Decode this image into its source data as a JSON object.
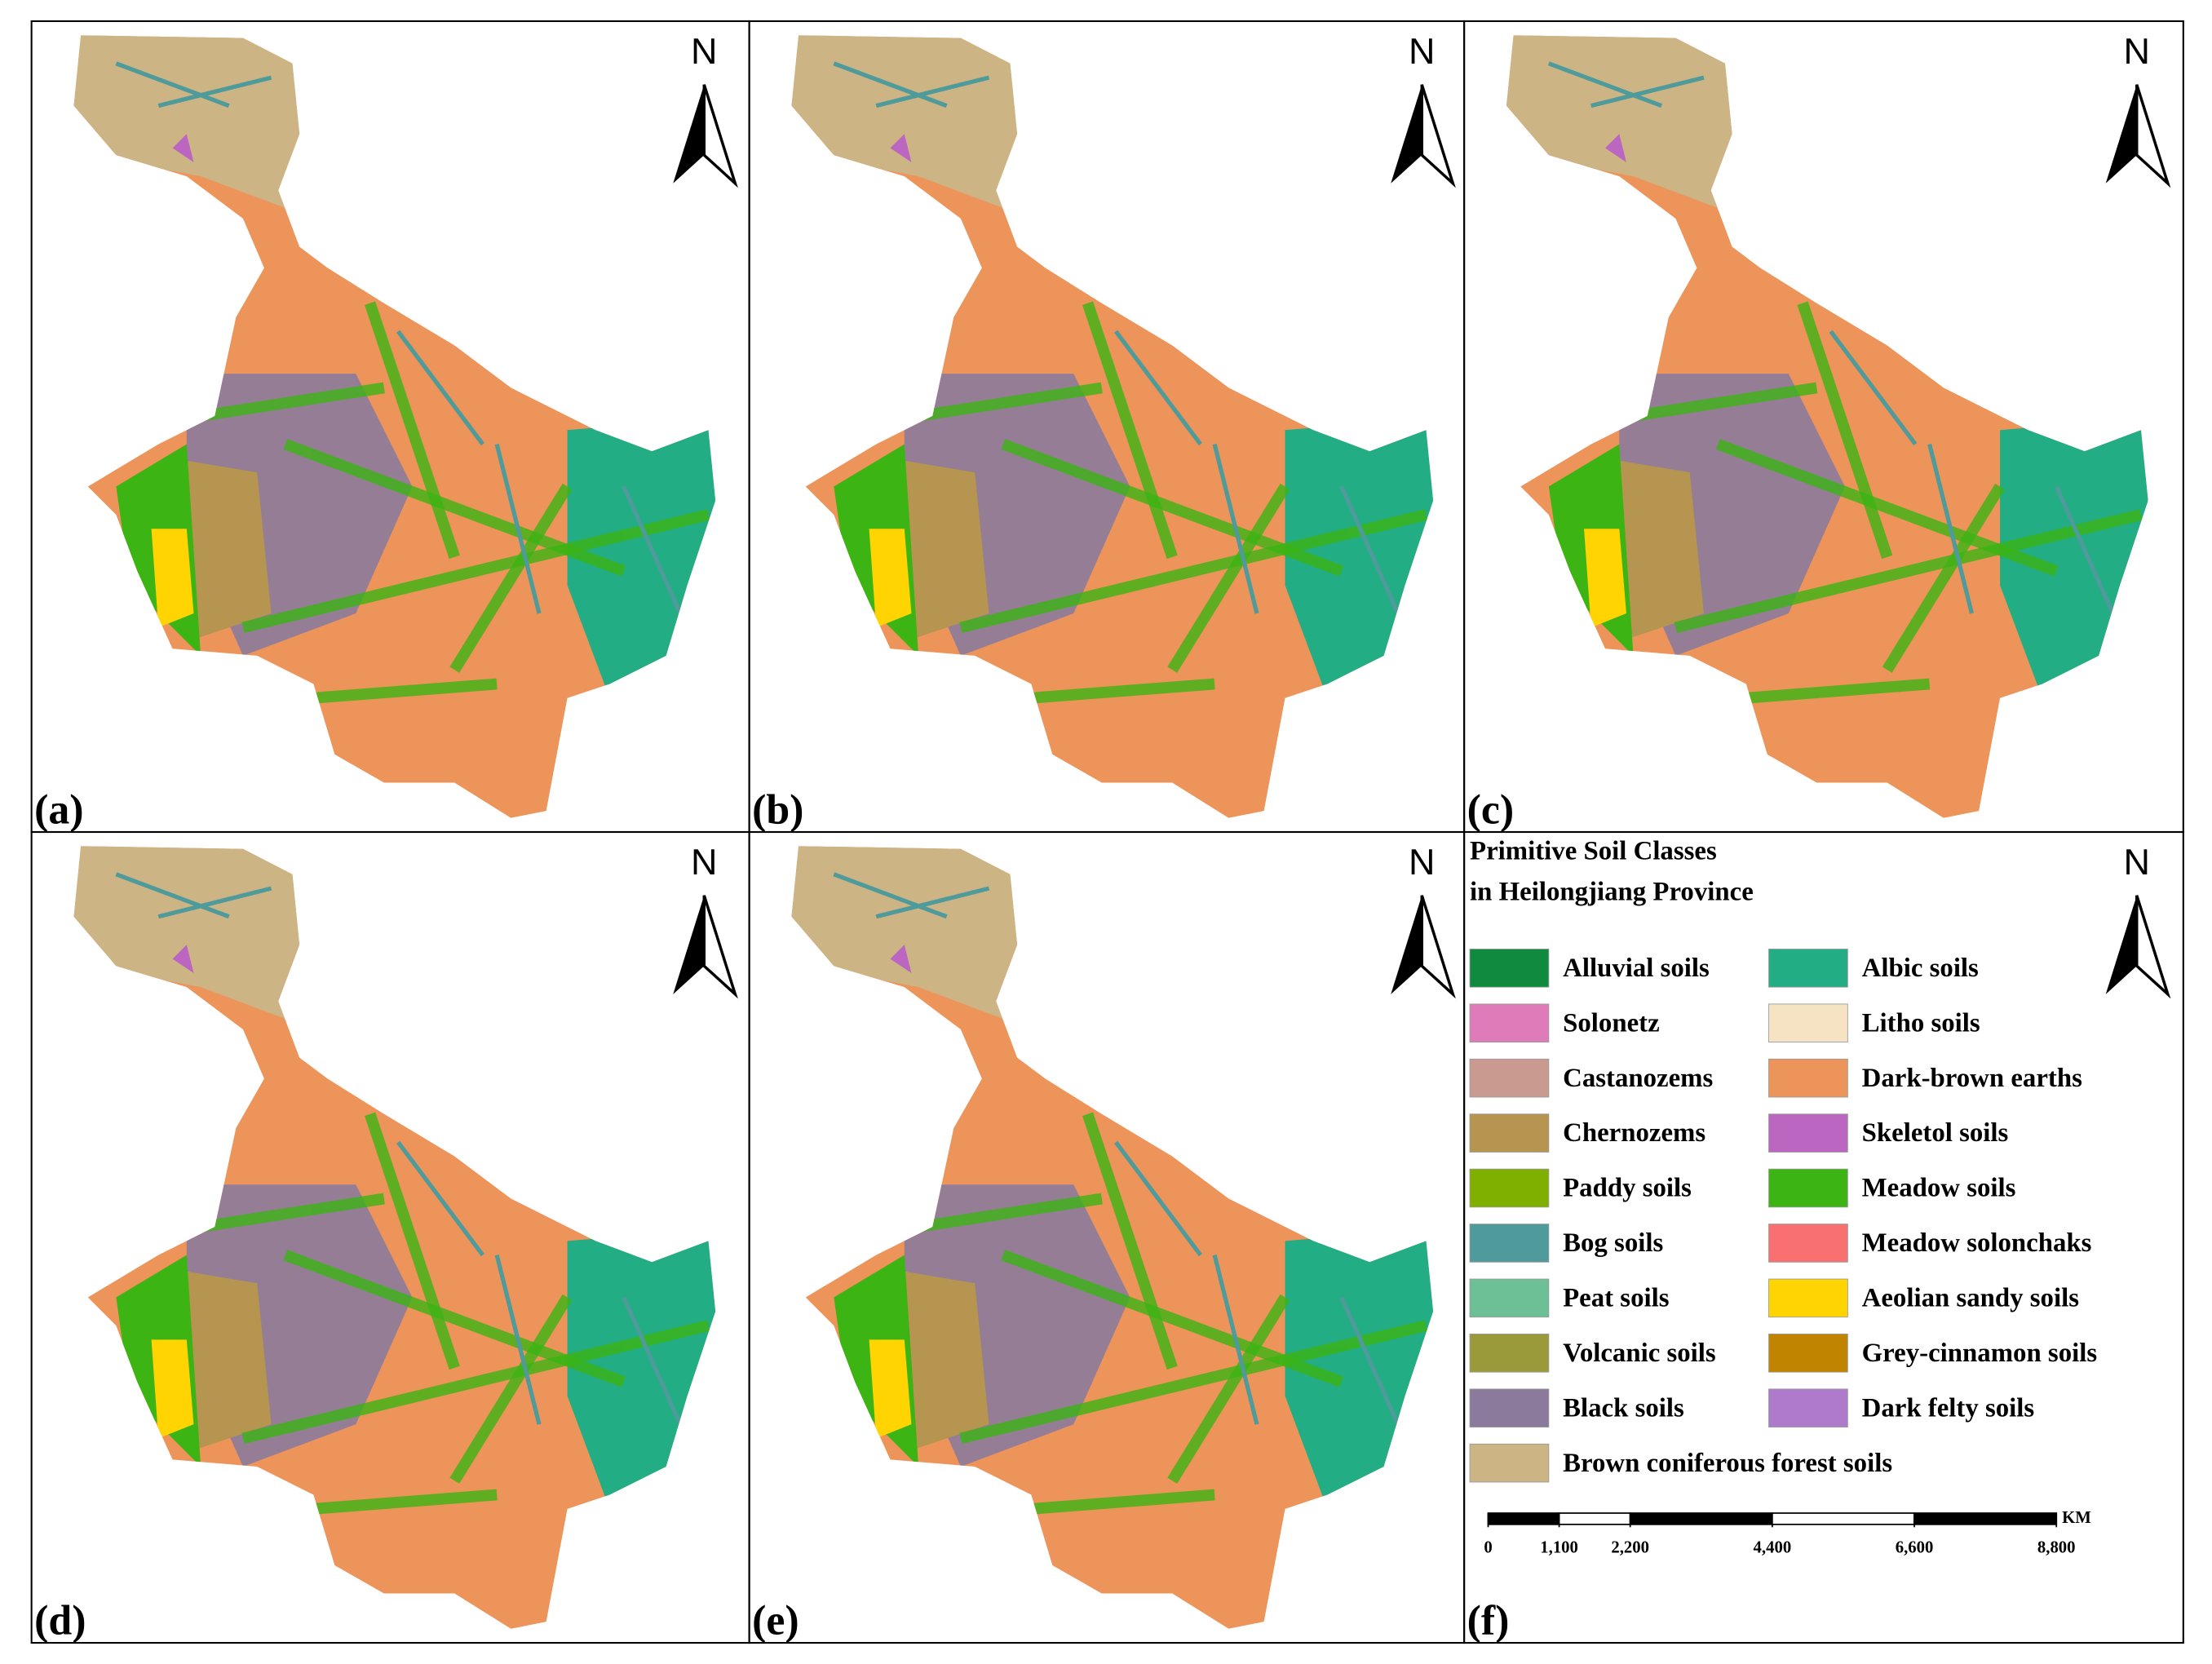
{
  "panels": [
    {
      "label": "(a)"
    },
    {
      "label": "(b)"
    },
    {
      "label": "(c)"
    },
    {
      "label": "(d)"
    },
    {
      "label": "(e)"
    },
    {
      "label": "(f)"
    }
  ],
  "north_label": "N",
  "legend": {
    "title_lines": [
      "Primitive Soil Classes",
      "in Heilongjiang Province"
    ],
    "items": [
      {
        "name": "Alluvial soils",
        "color": "#0f8a3f"
      },
      {
        "name": "Solonetz",
        "color": "#e07bb9"
      },
      {
        "name": "Castanozems",
        "color": "#c99a90"
      },
      {
        "name": "Chernozems",
        "color": "#b5954f"
      },
      {
        "name": "Paddy soils",
        "color": "#7fb000"
      },
      {
        "name": "Bog soils",
        "color": "#4f9a9a"
      },
      {
        "name": "Peat soils",
        "color": "#6dbf96"
      },
      {
        "name": "Volcanic soils",
        "color": "#9a9a3a"
      },
      {
        "name": "Black soils",
        "color": "#8c7a9c"
      },
      {
        "name": "Brown coniferous forest soils",
        "color": "#cdb484"
      },
      {
        "name": "Albic soils",
        "color": "#22ad84"
      },
      {
        "name": "Litho soils",
        "color": "#f5e3c4"
      },
      {
        "name": "Dark-brown earths",
        "color": "#ec9459"
      },
      {
        "name": "Skeletol soils",
        "color": "#bb66c0"
      },
      {
        "name": "Meadow soils",
        "color": "#3cb414"
      },
      {
        "name": "Meadow solonchaks",
        "color": "#f87070"
      },
      {
        "name": "Aeolian sandy soils",
        "color": "#ffd400"
      },
      {
        "name": "Grey-cinnamon soils",
        "color": "#c08400"
      },
      {
        "name": "Dark felty soils",
        "color": "#b07acc"
      }
    ]
  },
  "scale_bar": {
    "unit": "KM",
    "ticks": [
      0,
      {
        "value": 1100,
        "label": "1,100"
      },
      {
        "value": 2200,
        "label": "2,200"
      },
      {
        "value": 4400,
        "label": "4,400"
      },
      {
        "value": 6600,
        "label": "6,600"
      },
      {
        "value": 8800,
        "label": "8,800"
      }
    ]
  }
}
